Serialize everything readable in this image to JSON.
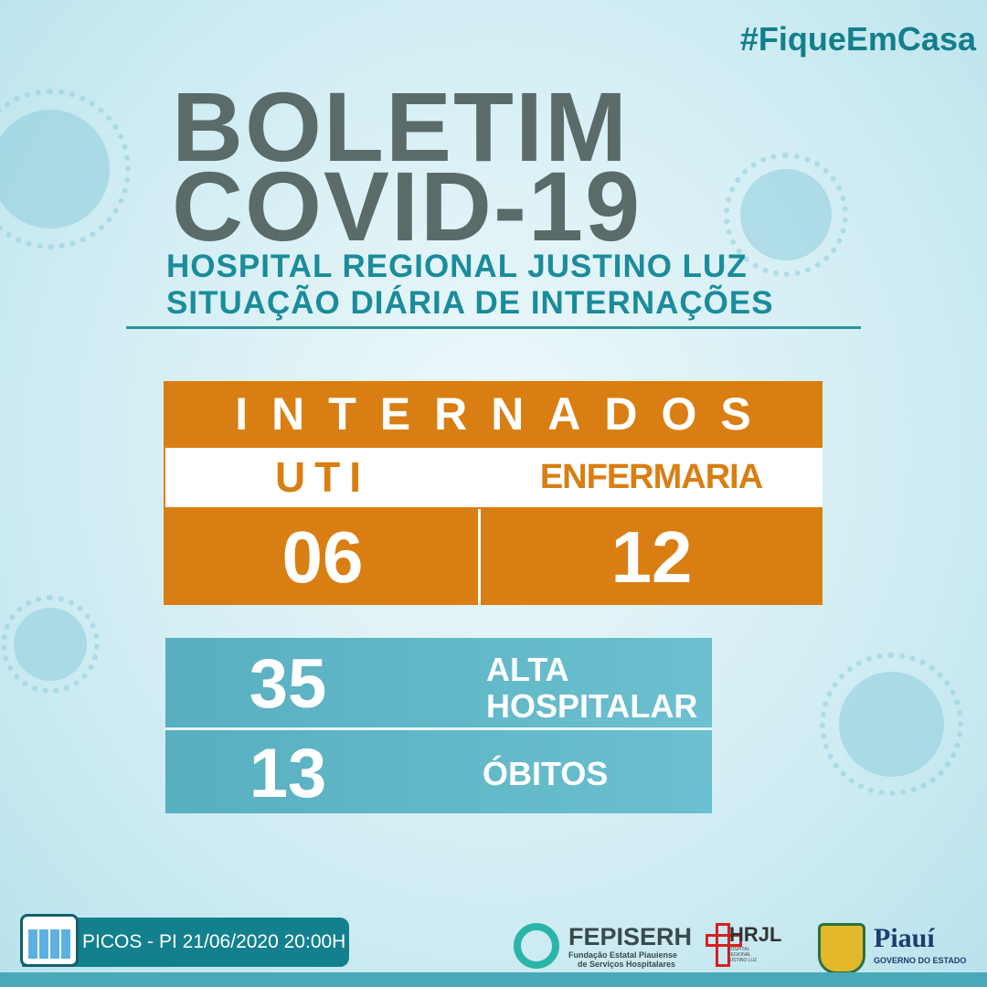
{
  "hashtag": "#FiqueEmCasa",
  "title": {
    "line1": "BOLETIM",
    "line2": "COVID-19"
  },
  "subtitle": {
    "line1": "HOSPITAL REGIONAL JUSTINO LUZ",
    "line2": "SITUAÇÃO DIÁRIA DE INTERNAÇÕES"
  },
  "internados": {
    "heading": "INTERNADOS",
    "uti_label": "UTI",
    "uti_value": "06",
    "enfermaria_label": "ENFERMARIA",
    "enfermaria_value": "12"
  },
  "summary": [
    {
      "value": "35",
      "label_line1": "ALTA",
      "label_line2": "HOSPITALAR"
    },
    {
      "value": "13",
      "label": "ÓBITOS"
    }
  ],
  "footer": {
    "date_text": "PICOS - PI  21/06/2020  20:00H",
    "icons": [
      "calendar-icon"
    ],
    "logos": {
      "fepiserh": "FEPISERH",
      "fepiserh_sub1": "Fundação Estatal Piauiense",
      "fepiserh_sub2": "de Serviços Hospitalares",
      "hrjl": "HRJL",
      "hrjl_sub": "HOSPITAL REGIONAL JUSTINO LUZ",
      "piaui": "Piauí",
      "piaui_sub": "GOVERNO DO ESTADO"
    }
  },
  "colors": {
    "orange": "#d97e12",
    "teal": "#5fb5c6",
    "title_grey": "#5b6b6a",
    "subtitle_teal": "#1a8c9b"
  }
}
